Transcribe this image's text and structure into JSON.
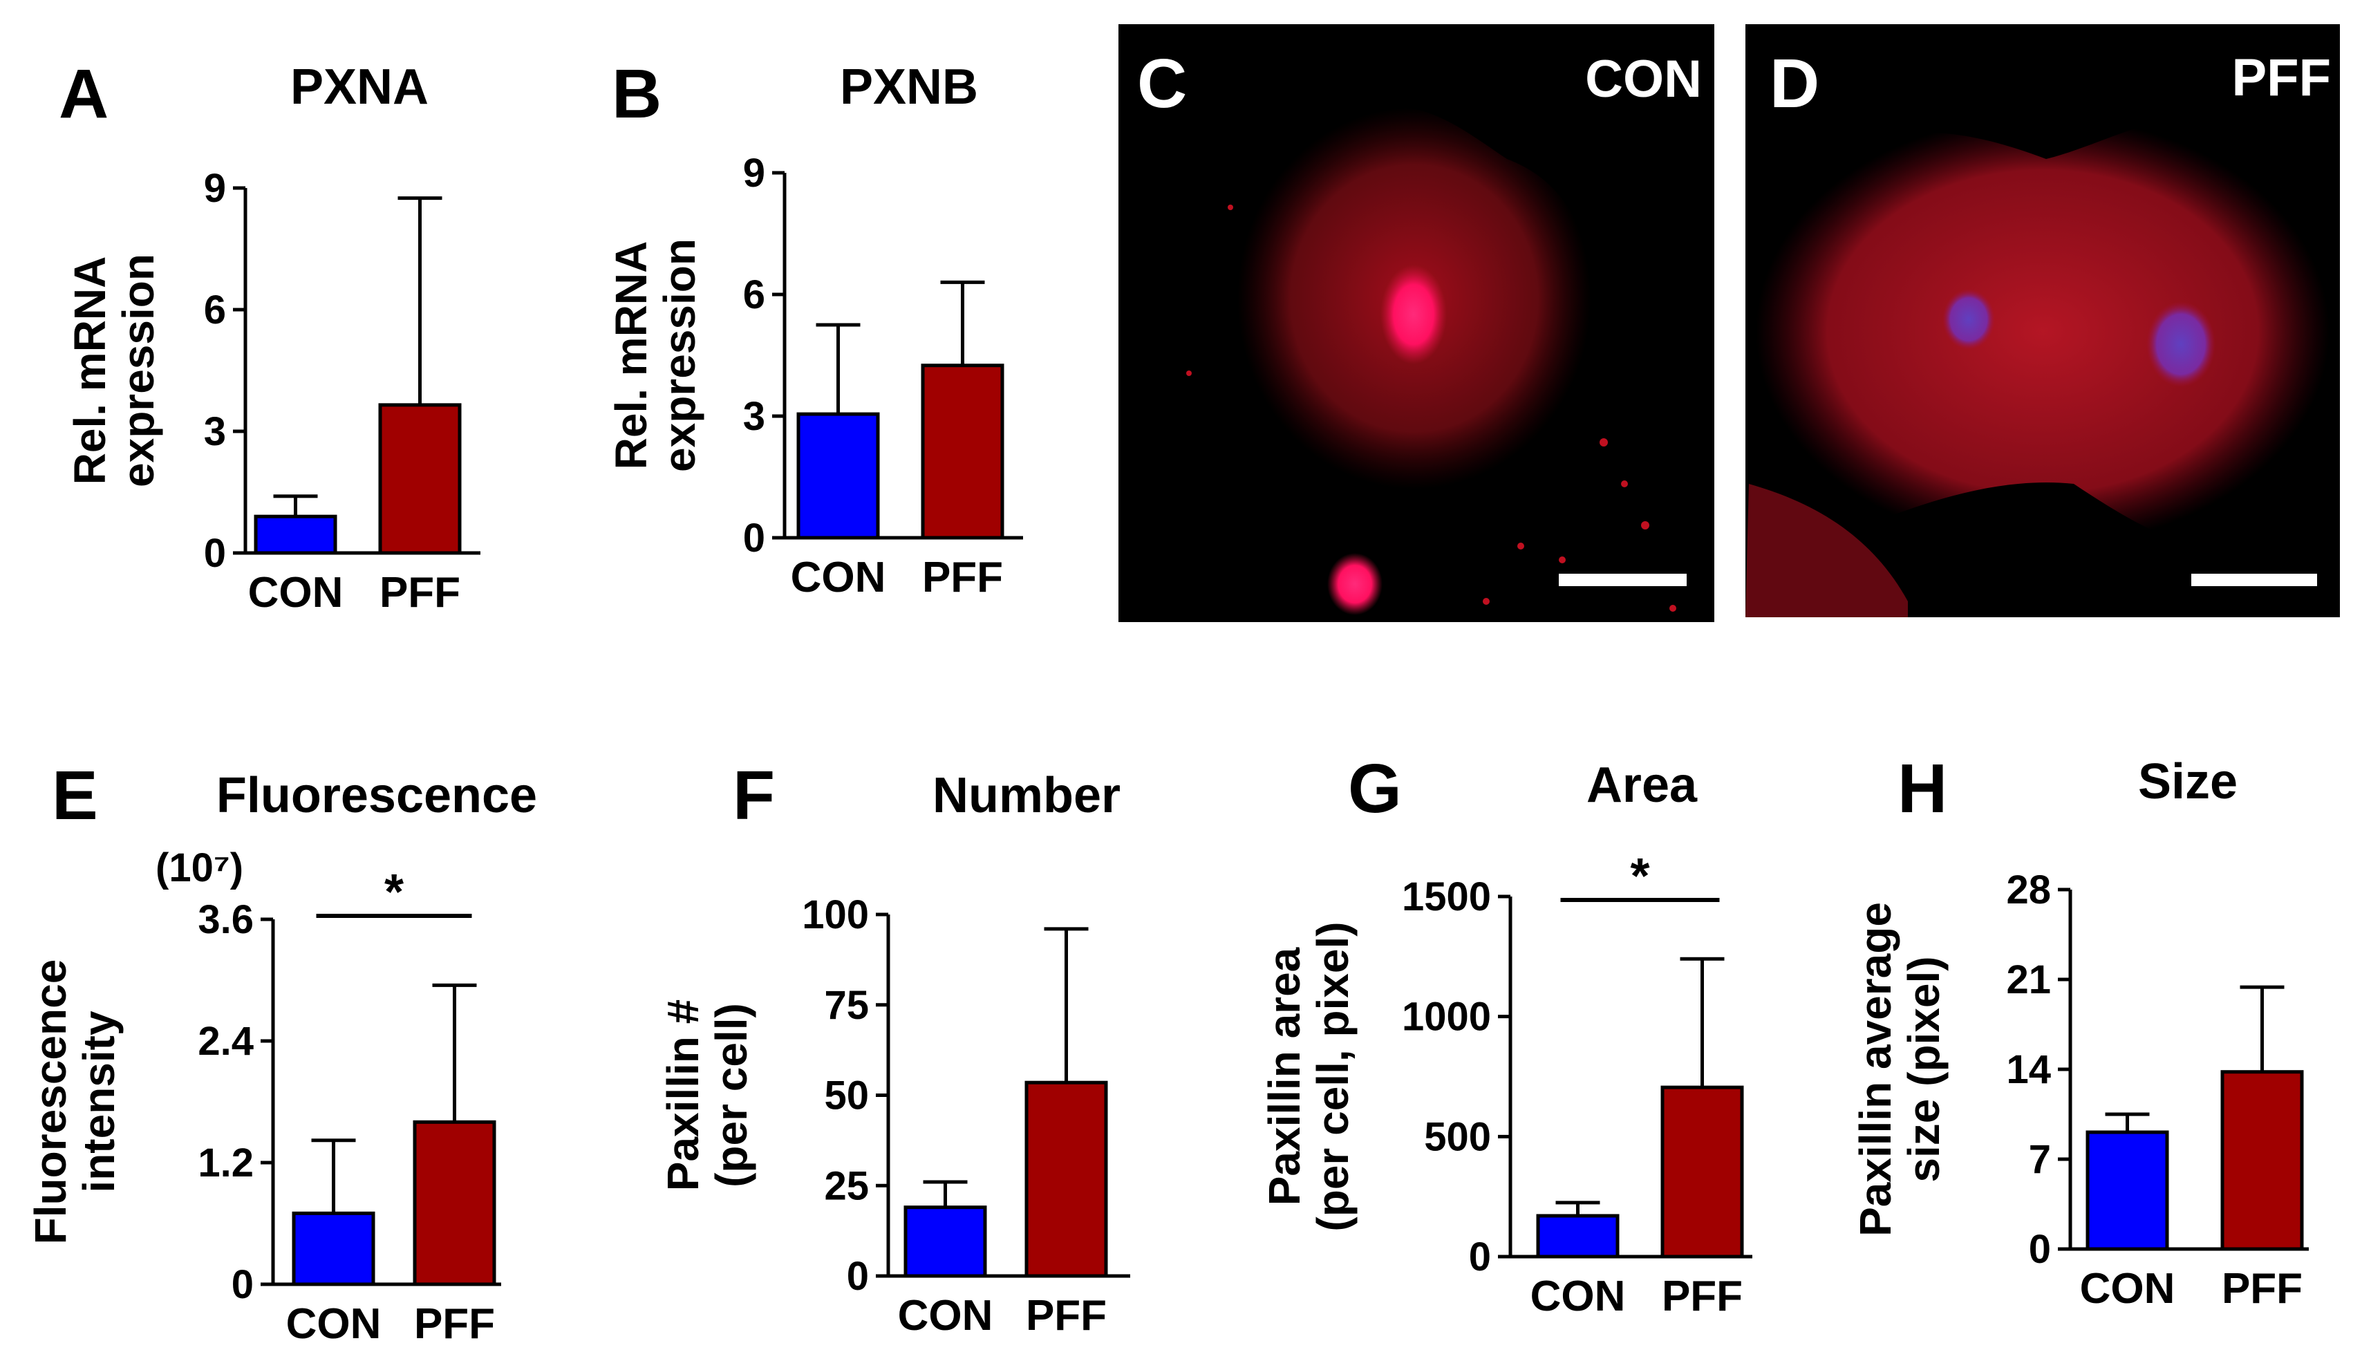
{
  "colors": {
    "con": "#0000ff",
    "pff": "#a00000",
    "photo_bg": "#000000"
  },
  "panels": {
    "C": {
      "letter": "C",
      "label": "CON"
    },
    "D": {
      "letter": "D",
      "label": "PFF"
    },
    "E": {
      "exponent_note": "(10⁷)"
    }
  },
  "chart_data": [
    {
      "panel": "A",
      "type": "bar",
      "title": "PXNA",
      "ylabel": [
        "Rel. mRNA",
        "expression"
      ],
      "categories": [
        "CON",
        "PFF"
      ],
      "values": [
        0.9,
        3.65
      ],
      "errors": [
        0.5,
        5.1
      ],
      "ylim": [
        0,
        9
      ],
      "yticks": [
        "0",
        "3",
        "6",
        "9"
      ],
      "significance": ""
    },
    {
      "panel": "B",
      "type": "bar",
      "title": "PXNB",
      "ylabel": [
        "Rel. mRNA",
        "expression"
      ],
      "categories": [
        "CON",
        "PFF"
      ],
      "values": [
        3.05,
        4.25
      ],
      "errors": [
        2.2,
        2.05
      ],
      "ylim": [
        0,
        9
      ],
      "yticks": [
        "0",
        "3",
        "6",
        "9"
      ],
      "significance": ""
    },
    {
      "panel": "E",
      "type": "bar",
      "title": "Fluorescence",
      "ylabel": [
        "Fluorescence",
        "intensity"
      ],
      "categories": [
        "CON",
        "PFF"
      ],
      "values": [
        0.7,
        1.6
      ],
      "errors": [
        0.72,
        1.35
      ],
      "ylim": [
        0,
        3.6
      ],
      "yticks": [
        "0",
        "1.2",
        "2.4",
        "3.6"
      ],
      "significance": "*"
    },
    {
      "panel": "F",
      "type": "bar",
      "title": "Number",
      "ylabel": [
        "Paxillin #",
        "(per cell)"
      ],
      "categories": [
        "CON",
        "PFF"
      ],
      "values": [
        19,
        53.5
      ],
      "errors": [
        7,
        42.5
      ],
      "ylim": [
        0,
        100
      ],
      "yticks": [
        "0",
        "25",
        "50",
        "75",
        "100"
      ],
      "significance": ""
    },
    {
      "panel": "G",
      "type": "bar",
      "title": "Area",
      "ylabel": [
        "Paxillin area",
        "(per cell, pixel)"
      ],
      "categories": [
        "CON",
        "PFF"
      ],
      "values": [
        170,
        705
      ],
      "errors": [
        55,
        535
      ],
      "ylim": [
        0,
        1500
      ],
      "yticks": [
        "0",
        "500",
        "1000",
        "1500"
      ],
      "significance": "*"
    },
    {
      "panel": "H",
      "type": "bar",
      "title": "Size",
      "ylabel": [
        "Paxillin average",
        "size (pixel)"
      ],
      "categories": [
        "CON",
        "PFF"
      ],
      "values": [
        9.1,
        13.8
      ],
      "errors": [
        1.4,
        6.6
      ],
      "ylim": [
        0,
        28
      ],
      "yticks": [
        "0",
        "7",
        "14",
        "21",
        "28"
      ],
      "significance": ""
    }
  ]
}
